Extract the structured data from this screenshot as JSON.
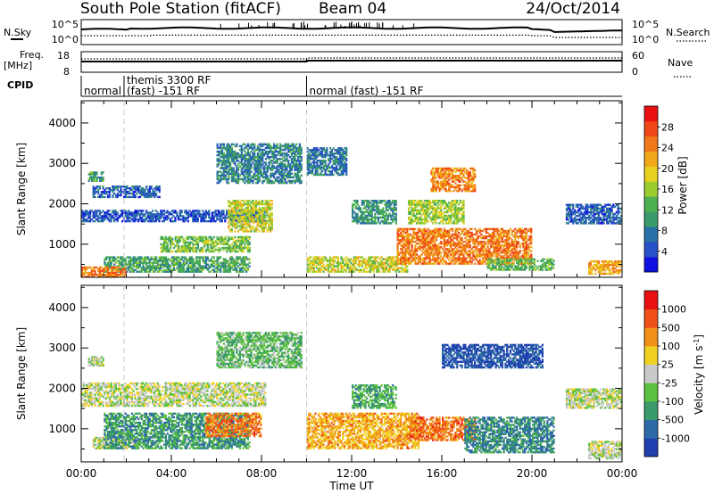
{
  "header": {
    "station": "South Pole Station (fitACF)",
    "beam": "Beam 04",
    "date": "24/Oct/2014"
  },
  "noise_panel": {
    "left_label": "N.Sky",
    "right_label": "N.Search",
    "tick_top": "10^5",
    "tick_bottom": "10^0"
  },
  "freq_panel": {
    "left_label_1": "Freq.",
    "left_label_2": "[MHz]",
    "left_tick_top": "18",
    "left_tick_bottom": "8",
    "right_label": "Nave",
    "right_tick_top": "60",
    "right_tick_bottom": "0"
  },
  "cpid_panel": {
    "label": "CPID",
    "segments": [
      {
        "start_hour": 0.0,
        "line1": "normal",
        "line2": ""
      },
      {
        "start_hour": 1.9,
        "line1": "themis 3300 RF",
        "line2": "(fast) -151 RF"
      },
      {
        "start_hour": 10.0,
        "line1": "normal (fast) -151 RF",
        "line2": ""
      }
    ]
  },
  "chart_data": [
    {
      "type": "heatmap",
      "name": "power",
      "ylabel": "Slant Range [km]",
      "yticks": [
        "1000",
        "2000",
        "3000",
        "4000"
      ],
      "ylim": [
        180,
        4550
      ],
      "xlim": [
        0,
        24
      ],
      "colorbar": {
        "label": "Power [dB]",
        "ticks": [
          "4",
          "8",
          "12",
          "16",
          "20",
          "24",
          "28"
        ],
        "range": [
          0,
          32
        ],
        "colors": [
          "#1010e0",
          "#2850c8",
          "#2a70a8",
          "#3a9a6a",
          "#4cb050",
          "#9acc30",
          "#e8d020",
          "#f0a818",
          "#f07818",
          "#f04818",
          "#e81010"
        ]
      },
      "echo_regions": [
        {
          "t0": 0.0,
          "t1": 8.2,
          "r0": 1550,
          "r1": 1850,
          "level": 0.12
        },
        {
          "t0": 0.5,
          "t1": 3.5,
          "r0": 2150,
          "r1": 2450,
          "level": 0.15
        },
        {
          "t0": 0.3,
          "t1": 1.0,
          "r0": 2550,
          "r1": 2800,
          "level": 0.35
        },
        {
          "t0": 1.0,
          "t1": 7.5,
          "r0": 300,
          "r1": 700,
          "level": 0.35
        },
        {
          "t0": 0.0,
          "t1": 2.0,
          "r0": 180,
          "r1": 450,
          "level": 0.8
        },
        {
          "t0": 3.5,
          "t1": 7.5,
          "r0": 800,
          "r1": 1200,
          "level": 0.45
        },
        {
          "t0": 6.5,
          "t1": 8.5,
          "r0": 1300,
          "r1": 2100,
          "level": 0.55
        },
        {
          "t0": 6.0,
          "t1": 9.8,
          "r0": 2500,
          "r1": 3500,
          "level": 0.25
        },
        {
          "t0": 10.0,
          "t1": 11.8,
          "r0": 2700,
          "r1": 3400,
          "level": 0.2
        },
        {
          "t0": 10.0,
          "t1": 14.5,
          "r0": 300,
          "r1": 700,
          "level": 0.55
        },
        {
          "t0": 12.0,
          "t1": 14.0,
          "r0": 1500,
          "r1": 2100,
          "level": 0.3
        },
        {
          "t0": 14.0,
          "t1": 20.0,
          "r0": 500,
          "r1": 1400,
          "level": 0.8
        },
        {
          "t0": 14.5,
          "t1": 17.0,
          "r0": 1500,
          "r1": 2100,
          "level": 0.5
        },
        {
          "t0": 15.5,
          "t1": 17.5,
          "r0": 2300,
          "r1": 2900,
          "level": 0.78
        },
        {
          "t0": 18.0,
          "t1": 21.0,
          "r0": 350,
          "r1": 650,
          "level": 0.4
        },
        {
          "t0": 21.5,
          "t1": 24.0,
          "r0": 1500,
          "r1": 2000,
          "level": 0.15
        },
        {
          "t0": 22.5,
          "t1": 24.0,
          "r0": 250,
          "r1": 600,
          "level": 0.7
        }
      ]
    },
    {
      "type": "heatmap",
      "name": "velocity",
      "ylabel": "Slant Range [km]",
      "yticks": [
        "1000",
        "2000",
        "3000",
        "4000"
      ],
      "ylim": [
        180,
        4550
      ],
      "xlim": [
        0,
        24
      ],
      "colorbar": {
        "label": "Velocity [m s^-1]",
        "ticks": [
          "1000",
          "500",
          "100",
          "25",
          "-25",
          "-100",
          "-500",
          "-1000"
        ],
        "colors": [
          "#2040b0",
          "#2e6aa8",
          "#3a9a6a",
          "#5cc040",
          "#c8c8c8",
          "#f0d020",
          "#f09018",
          "#f05018",
          "#e81010"
        ]
      },
      "echo_regions": [
        {
          "t0": 0.0,
          "t1": 8.2,
          "r0": 1550,
          "r1": 2150,
          "level": 0.5
        },
        {
          "t0": 0.3,
          "t1": 1.0,
          "r0": 2550,
          "r1": 2800,
          "level": 0.45
        },
        {
          "t0": 0.5,
          "t1": 2.5,
          "r0": 500,
          "r1": 800,
          "level": 0.5
        },
        {
          "t0": 1.0,
          "t1": 7.5,
          "r0": 500,
          "r1": 1400,
          "level": 0.25
        },
        {
          "t0": 5.5,
          "t1": 8.0,
          "r0": 800,
          "r1": 1400,
          "level": 0.8
        },
        {
          "t0": 6.0,
          "t1": 9.8,
          "r0": 2500,
          "r1": 3400,
          "level": 0.35
        },
        {
          "t0": 10.0,
          "t1": 15.0,
          "r0": 500,
          "r1": 1400,
          "level": 0.7
        },
        {
          "t0": 12.0,
          "t1": 14.0,
          "r0": 1500,
          "r1": 2100,
          "level": 0.3
        },
        {
          "t0": 14.5,
          "t1": 17.5,
          "r0": 700,
          "r1": 1300,
          "level": 0.82
        },
        {
          "t0": 16.0,
          "t1": 20.5,
          "r0": 2500,
          "r1": 3100,
          "level": 0.05
        },
        {
          "t0": 17.0,
          "t1": 21.0,
          "r0": 400,
          "r1": 1300,
          "level": 0.2
        },
        {
          "t0": 21.5,
          "t1": 24.0,
          "r0": 1500,
          "r1": 2000,
          "level": 0.5
        },
        {
          "t0": 22.5,
          "t1": 24.0,
          "r0": 250,
          "r1": 700,
          "level": 0.5
        }
      ]
    }
  ],
  "x_axis": {
    "label": "Time UT",
    "ticks": [
      "00:00",
      "04:00",
      "08:00",
      "12:00",
      "16:00",
      "20:00",
      "00:00"
    ],
    "tick_hours": [
      0,
      4,
      8,
      12,
      16,
      20,
      24
    ]
  }
}
